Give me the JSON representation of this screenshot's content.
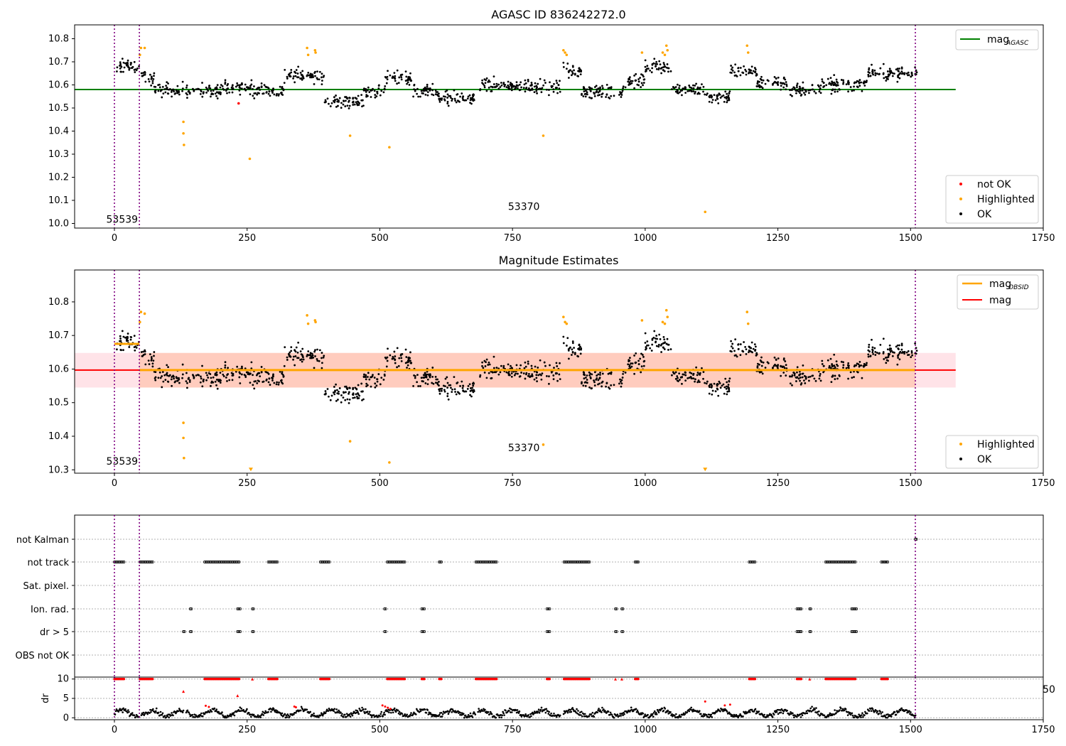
{
  "chart_data": [
    {
      "type": "scatter",
      "title": "AGASC ID 836242272.0",
      "xlabel": "",
      "ylabel": "",
      "xlim": [
        -75,
        1750
      ],
      "ylim": [
        9.98,
        10.86
      ],
      "xticks": [
        0,
        250,
        500,
        750,
        1000,
        1250,
        1500,
        1750
      ],
      "yticks": [
        10.0,
        10.1,
        10.2,
        10.3,
        10.4,
        10.5,
        10.6,
        10.7,
        10.8
      ],
      "grid": false,
      "vlines": [
        0,
        47,
        1509
      ],
      "hlines": [
        {
          "name": "mag_AGASC",
          "y": 10.58,
          "x_range": [
            -75,
            1585
          ],
          "color": "#008000"
        }
      ],
      "annotations": [
        {
          "text": "53539",
          "x": -7,
          "y": 10.01
        },
        {
          "text": "53370",
          "x": 750,
          "y": 10.065
        }
      ],
      "legend": {
        "placement": "top-right",
        "items": [
          {
            "label": "mag",
            "sub": "AGASC",
            "color": "#008000"
          }
        ]
      },
      "legend2": {
        "placement": "lower-right",
        "items": [
          {
            "label": "not OK",
            "color": "#ff0000"
          },
          {
            "label": "Highlighted",
            "color": "#ffa500"
          },
          {
            "label": "OK",
            "color": "#000000"
          }
        ]
      },
      "highlighted": [
        [
          50,
          10.76
        ],
        [
          48,
          10.73
        ],
        [
          57,
          10.76
        ],
        [
          130,
          10.44
        ],
        [
          130,
          10.39
        ],
        [
          131,
          10.34
        ],
        [
          255,
          10.28
        ],
        [
          363,
          10.76
        ],
        [
          365,
          10.73
        ],
        [
          378,
          10.75
        ],
        [
          379,
          10.74
        ],
        [
          444,
          10.38
        ],
        [
          518,
          10.33
        ],
        [
          808,
          10.38
        ],
        [
          846,
          10.75
        ],
        [
          849,
          10.74
        ],
        [
          852,
          10.73
        ],
        [
          994,
          10.74
        ],
        [
          1033,
          10.74
        ],
        [
          1037,
          10.73
        ],
        [
          1040,
          10.77
        ],
        [
          1042,
          10.75
        ],
        [
          1113,
          10.05
        ],
        [
          1192,
          10.77
        ],
        [
          1194,
          10.74
        ]
      ],
      "not_ok": [
        [
          234,
          10.52
        ]
      ]
    },
    {
      "type": "scatter",
      "title": "Magnitude Estimates",
      "xlabel": "",
      "ylabel": "",
      "xlim": [
        -75,
        1750
      ],
      "ylim": [
        10.29,
        10.895
      ],
      "xticks": [
        0,
        250,
        500,
        750,
        1000,
        1250,
        1500,
        1750
      ],
      "yticks": [
        10.3,
        10.4,
        10.5,
        10.6,
        10.7,
        10.8
      ],
      "grid": false,
      "vlines": [
        0,
        47,
        1509
      ],
      "mag_line": {
        "name": "mag",
        "y": 10.597,
        "x_range": [
          -75,
          1585
        ],
        "color": "#ff0000"
      },
      "mag_band": {
        "y0": 10.545,
        "y1": 10.648,
        "x_range": [
          -75,
          1585
        ],
        "color": "#ffc0cb"
      },
      "obs_band": {
        "y0": 10.545,
        "y1": 10.648,
        "x_range": [
          47,
          1509
        ],
        "color": "#ffa070"
      },
      "mag_obsid": [
        {
          "x0": 0,
          "x1": 47,
          "y": 10.675
        },
        {
          "x0": 47,
          "x1": 1509,
          "y": 10.597
        }
      ],
      "annotations": [
        {
          "text": "53539",
          "x": -7,
          "y": 10.32
        },
        {
          "text": "53370",
          "x": 750,
          "y": 10.36
        }
      ],
      "legend": {
        "placement": "top-right",
        "items": [
          {
            "label": "mag",
            "sub": "OBSID",
            "color": "#ffa500"
          },
          {
            "label": "mag",
            "sub": "",
            "color": "#ff0000"
          }
        ]
      },
      "legend2": {
        "placement": "lower-right",
        "items": [
          {
            "label": "Highlighted",
            "color": "#ffa500"
          },
          {
            "label": "OK",
            "color": "#000000"
          }
        ]
      },
      "highlighted": [
        [
          50,
          10.77
        ],
        [
          48,
          10.74
        ],
        [
          57,
          10.765
        ],
        [
          130,
          10.44
        ],
        [
          130,
          10.395
        ],
        [
          131,
          10.335
        ],
        [
          363,
          10.76
        ],
        [
          365,
          10.735
        ],
        [
          378,
          10.745
        ],
        [
          379,
          10.74
        ],
        [
          444,
          10.385
        ],
        [
          518,
          10.322
        ],
        [
          808,
          10.375
        ],
        [
          846,
          10.755
        ],
        [
          849,
          10.74
        ],
        [
          852,
          10.735
        ],
        [
          994,
          10.745
        ],
        [
          1033,
          10.74
        ],
        [
          1037,
          10.735
        ],
        [
          1040,
          10.775
        ],
        [
          1042,
          10.755
        ],
        [
          1192,
          10.77
        ],
        [
          1194,
          10.735
        ]
      ],
      "offscale_markers": [
        [
          257,
          10.3
        ],
        [
          1113,
          10.3
        ]
      ]
    },
    {
      "type": "scatter",
      "title": "",
      "xlabel": "",
      "ylabel": "",
      "xlim": [
        -75,
        1750
      ],
      "categories": [
        "not Kalman",
        "not track",
        "Sat. pixel.",
        "Ion. rad.",
        "dr > 5",
        "OBS not OK"
      ],
      "grid": true,
      "vlines": [
        0,
        47,
        1509
      ],
      "flags": {
        "not track": [
          [
            0,
            18
          ],
          [
            48,
            72
          ],
          [
            170,
            235
          ],
          [
            290,
            307
          ],
          [
            388,
            405
          ],
          [
            514,
            547
          ],
          [
            612,
            616
          ],
          [
            681,
            720
          ],
          [
            847,
            895
          ],
          [
            981,
            987
          ],
          [
            1196,
            1207
          ],
          [
            1340,
            1396
          ],
          [
            1445,
            1457
          ]
        ],
        "Ion. rad.": [
          [
            143,
            145
          ],
          [
            232,
            237
          ],
          [
            260,
            262
          ],
          [
            509,
            511
          ],
          [
            579,
            584
          ],
          [
            815,
            820
          ],
          [
            944,
            946
          ],
          [
            956,
            958
          ],
          [
            1286,
            1294
          ],
          [
            1310,
            1312
          ],
          [
            1389,
            1398
          ]
        ],
        "dr > 5": [
          [
            130,
            132
          ],
          [
            143,
            145
          ],
          [
            232,
            237
          ],
          [
            260,
            262
          ],
          [
            509,
            511
          ],
          [
            579,
            584
          ],
          [
            815,
            820
          ],
          [
            944,
            946
          ],
          [
            956,
            958
          ],
          [
            1286,
            1294
          ],
          [
            1310,
            1312
          ],
          [
            1389,
            1398
          ]
        ],
        "not Kalman": [
          [
            1509,
            1511
          ]
        ]
      }
    },
    {
      "type": "scatter",
      "title": "",
      "xlabel": "",
      "ylabel": "dr",
      "xlim": [
        -75,
        1750
      ],
      "ylim": [
        -0.5,
        10.5
      ],
      "xticks": [
        0,
        250,
        500,
        750,
        1000,
        1250,
        1500,
        1750
      ],
      "yticks": [
        0,
        5,
        10
      ],
      "grid": true,
      "vlines": [
        0,
        47,
        1509
      ],
      "annotations": [
        {
          "text": "50",
          "x": 1740,
          "y": 6.5
        }
      ],
      "red_at_10": [
        [
          0,
          18
        ],
        [
          48,
          72
        ],
        [
          170,
          235
        ],
        [
          290,
          307
        ],
        [
          388,
          405
        ],
        [
          514,
          547
        ],
        [
          579,
          584
        ],
        [
          612,
          616
        ],
        [
          681,
          720
        ],
        [
          815,
          820
        ],
        [
          847,
          895
        ],
        [
          981,
          987
        ],
        [
          1196,
          1207
        ],
        [
          1286,
          1294
        ],
        [
          1340,
          1396
        ],
        [
          1445,
          1457
        ]
      ],
      "red_triangles": [
        [
          130,
          6.8
        ],
        [
          232,
          5.7
        ],
        [
          260,
          10
        ],
        [
          944,
          10
        ],
        [
          956,
          10
        ],
        [
          1310,
          10
        ]
      ],
      "red_points": [
        [
          172,
          3.1
        ],
        [
          178,
          2.8
        ],
        [
          339,
          2.9
        ],
        [
          342,
          2.7
        ],
        [
          505,
          3.2
        ],
        [
          510,
          2.9
        ],
        [
          515,
          2.6
        ],
        [
          520,
          2.3
        ],
        [
          1113,
          4.2
        ],
        [
          1150,
          3.2
        ],
        [
          1160,
          3.4
        ]
      ]
    }
  ]
}
